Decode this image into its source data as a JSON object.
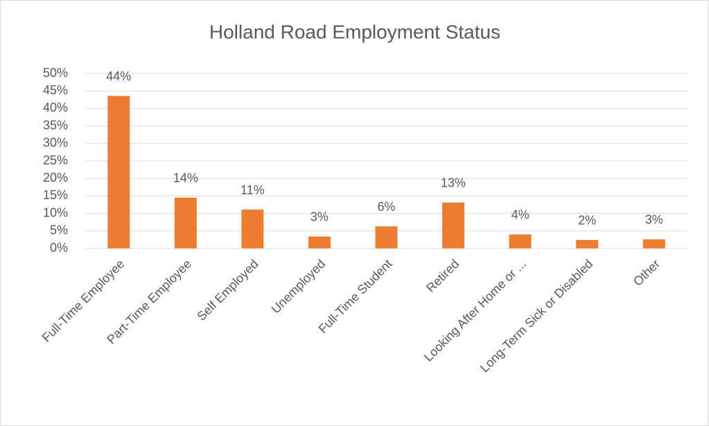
{
  "chart_data": {
    "type": "bar",
    "title": "Holland Road Employment Status",
    "categories": [
      "Full-Time Employee",
      "Part-Time Employee",
      "Self Employed",
      "Unemployed",
      "Full-Time Student",
      "Retired",
      "Looking After Home or ...",
      "Long-Term Sick or Disabled",
      "Other"
    ],
    "values": [
      43.6,
      14.5,
      11.1,
      3.4,
      6.3,
      13.1,
      4.0,
      2.4,
      2.6
    ],
    "value_labels": [
      "44%",
      "14%",
      "11%",
      "3%",
      "6%",
      "13%",
      "4%",
      "2%",
      "3%"
    ],
    "color": "#ed7d31",
    "ylim": [
      0,
      50
    ],
    "yticks": [
      {
        "value": 0,
        "label": "0%"
      },
      {
        "value": 5,
        "label": "5%"
      },
      {
        "value": 10,
        "label": "10%"
      },
      {
        "value": 15,
        "label": "15%"
      },
      {
        "value": 20,
        "label": "20%"
      },
      {
        "value": 25,
        "label": "25%"
      },
      {
        "value": 30,
        "label": "30%"
      },
      {
        "value": 35,
        "label": "35%"
      },
      {
        "value": 40,
        "label": "40%"
      },
      {
        "value": 45,
        "label": "45%"
      },
      {
        "value": 50,
        "label": "50%"
      }
    ],
    "grid": true
  }
}
